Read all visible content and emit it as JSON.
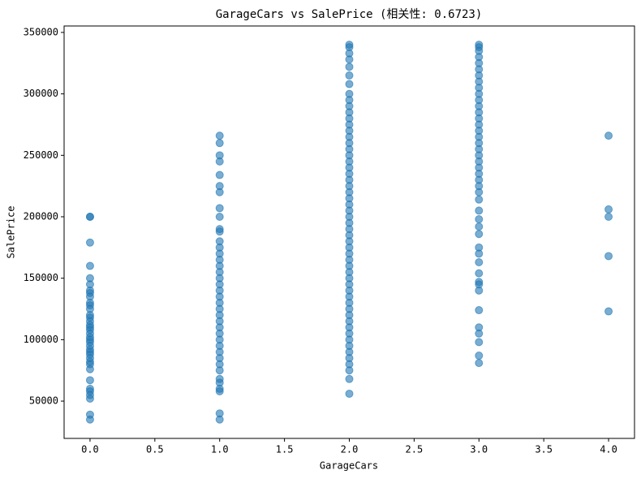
{
  "chart_data": {
    "type": "scatter",
    "title": "GarageCars vs SalePrice (相关性: 0.6723)",
    "x_label": "GarageCars",
    "y_label": "SalePrice",
    "color": "#1f77b4",
    "opacity": 0.6,
    "xlim": [
      -0.2,
      4.2
    ],
    "ylim": [
      19645,
      355255
    ],
    "xticks": [
      {
        "value": 0,
        "label": "0.0"
      },
      {
        "value": 0.5,
        "label": "0.5"
      },
      {
        "value": 1,
        "label": "1.0"
      },
      {
        "value": 1.5,
        "label": "1.5"
      },
      {
        "value": 2,
        "label": "2.0"
      },
      {
        "value": 2.5,
        "label": "2.5"
      },
      {
        "value": 3,
        "label": "3.0"
      },
      {
        "value": 3.5,
        "label": "3.5"
      },
      {
        "value": 4,
        "label": "4.0"
      }
    ],
    "yticks": [
      50000,
      100000,
      150000,
      200000,
      250000,
      300000,
      350000
    ],
    "x": [
      0,
      0,
      0,
      0,
      0,
      0,
      0,
      0,
      0,
      0,
      0,
      0,
      0,
      0,
      0,
      0,
      0,
      0,
      0,
      0,
      0,
      0,
      0,
      0,
      0,
      0,
      0,
      0,
      0,
      0,
      0,
      0,
      0,
      0,
      0,
      0,
      0,
      1,
      1,
      1,
      1,
      1,
      1,
      1,
      1,
      1,
      1,
      1,
      1,
      1,
      1,
      1,
      1,
      1,
      1,
      1,
      1,
      1,
      1,
      1,
      1,
      1,
      1,
      1,
      1,
      1,
      1,
      1,
      1,
      1,
      1,
      1,
      1,
      1,
      1,
      1,
      2,
      2,
      2,
      2,
      2,
      2,
      2,
      2,
      2,
      2,
      2,
      2,
      2,
      2,
      2,
      2,
      2,
      2,
      2,
      2,
      2,
      2,
      2,
      2,
      2,
      2,
      2,
      2,
      2,
      2,
      2,
      2,
      2,
      2,
      2,
      2,
      2,
      2,
      2,
      2,
      2,
      2,
      2,
      2,
      2,
      2,
      2,
      2,
      2,
      2,
      2,
      2,
      2,
      2,
      2,
      3,
      3,
      3,
      3,
      3,
      3,
      3,
      3,
      3,
      3,
      3,
      3,
      3,
      3,
      3,
      3,
      3,
      3,
      3,
      3,
      3,
      3,
      3,
      3,
      3,
      3,
      3,
      3,
      3,
      3,
      3,
      3,
      3,
      3,
      3,
      3,
      3,
      3,
      3,
      3,
      3,
      3,
      3,
      3,
      4,
      4,
      4,
      4,
      4
    ],
    "values": [
      200000,
      200000,
      179000,
      160000,
      150000,
      145000,
      140000,
      138000,
      135000,
      130000,
      128000,
      125000,
      120000,
      118000,
      115000,
      112000,
      110000,
      108000,
      105000,
      102000,
      100000,
      98000,
      95000,
      92000,
      90000,
      88000,
      85000,
      82000,
      80000,
      76000,
      67000,
      60000,
      58000,
      55000,
      52000,
      39000,
      35000,
      266000,
      260000,
      250000,
      245000,
      234000,
      225000,
      220000,
      207000,
      200000,
      190000,
      188000,
      180000,
      175000,
      170000,
      165000,
      160000,
      155000,
      150000,
      145000,
      140000,
      135000,
      130000,
      125000,
      120000,
      115000,
      110000,
      105000,
      100000,
      95000,
      90000,
      85000,
      80000,
      75000,
      68000,
      65000,
      60000,
      58000,
      40000,
      35000,
      340000,
      338000,
      333000,
      328000,
      322000,
      315000,
      308000,
      300000,
      295000,
      290000,
      285000,
      280000,
      275000,
      270000,
      265000,
      260000,
      255000,
      250000,
      245000,
      240000,
      235000,
      230000,
      225000,
      220000,
      215000,
      210000,
      205000,
      200000,
      195000,
      190000,
      185000,
      180000,
      175000,
      170000,
      165000,
      160000,
      155000,
      150000,
      145000,
      140000,
      135000,
      130000,
      125000,
      120000,
      115000,
      110000,
      105000,
      100000,
      95000,
      90000,
      85000,
      80000,
      75000,
      68000,
      56000,
      340000,
      338000,
      335000,
      330000,
      325000,
      320000,
      315000,
      310000,
      305000,
      300000,
      295000,
      290000,
      285000,
      280000,
      275000,
      270000,
      265000,
      260000,
      255000,
      250000,
      245000,
      240000,
      235000,
      230000,
      225000,
      220000,
      214000,
      205000,
      198000,
      192000,
      186000,
      175000,
      170000,
      163000,
      154000,
      147000,
      145000,
      140000,
      124000,
      110000,
      105000,
      98000,
      87000,
      81000,
      266000,
      206000,
      200000,
      168000,
      123000
    ]
  }
}
